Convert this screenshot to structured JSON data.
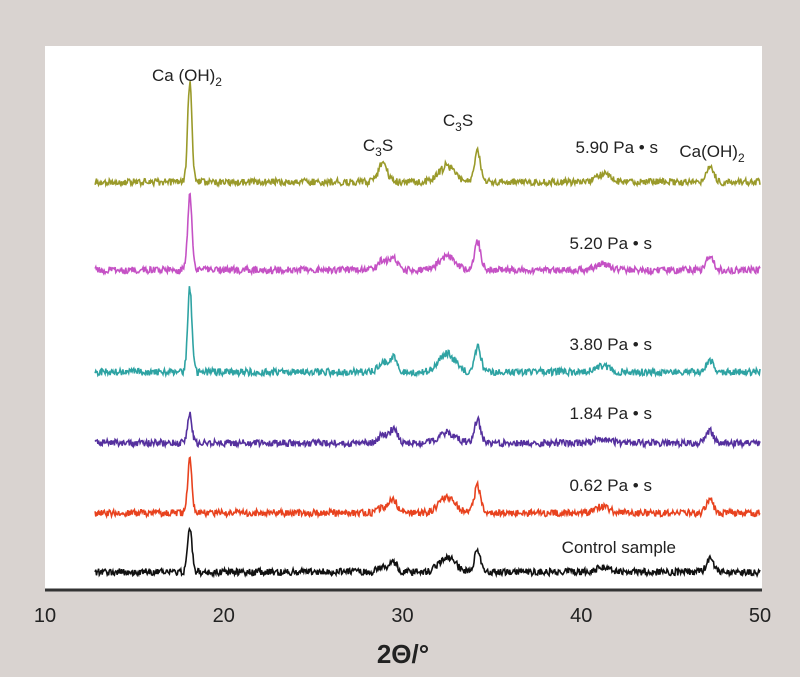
{
  "chart_data": {
    "type": "line",
    "title": "",
    "xlabel": "2Θ/°",
    "ylabel": "",
    "xlim": [
      10,
      50
    ],
    "xticks": [
      "10",
      "20",
      "30",
      "40",
      "50"
    ],
    "grid": false,
    "peak_positions": [
      18.1,
      28.9,
      29.5,
      32.5,
      34.2,
      41.2,
      47.2
    ],
    "peak_annotations": [
      {
        "text": "Ca (OH)",
        "sub": "2",
        "x": 18.1
      },
      {
        "text": "C",
        "sub": "3",
        "tail": "S",
        "x": 29.5
      },
      {
        "text": "C",
        "sub": "3",
        "tail": "S",
        "x": 34.2
      },
      {
        "text": "Ca(OH)",
        "sub": "2",
        "x": 47.2
      }
    ],
    "series": [
      {
        "name": "5.90 Pa • s",
        "color": "#9a9a2a",
        "offset": 5,
        "peaks": [
          99,
          18,
          0,
          16,
          30,
          8,
          16
        ]
      },
      {
        "name": "5.20 Pa • s",
        "color": "#c552c5",
        "offset": 4,
        "peaks": [
          74,
          10,
          12,
          14,
          28,
          6,
          14
        ]
      },
      {
        "name": "3.80 Pa • s",
        "color": "#2ea3a3",
        "offset": 3,
        "peaks": [
          84,
          10,
          16,
          18,
          26,
          6,
          12
        ]
      },
      {
        "name": "1.84 Pa • s",
        "color": "#55309e",
        "offset": 2,
        "peaks": [
          28,
          8,
          14,
          10,
          22,
          4,
          12
        ]
      },
      {
        "name": "0.62 Pa • s",
        "color": "#e8421e",
        "offset": 1,
        "peaks": [
          53,
          6,
          14,
          16,
          26,
          6,
          14
        ]
      },
      {
        "name": "Control sample",
        "color": "#111111",
        "offset": 0,
        "peaks": [
          44,
          6,
          10,
          14,
          22,
          4,
          14
        ]
      }
    ]
  }
}
